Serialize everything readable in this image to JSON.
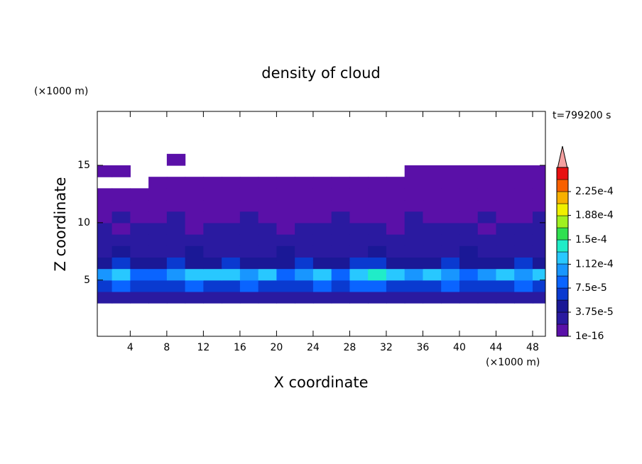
{
  "chart_data": {
    "type": "contour",
    "title": "density of cloud",
    "xlabel": "X coordinate",
    "ylabel": "Z coordinate",
    "xunit": "(×1000 m)",
    "yunit": "(×1000 m)",
    "time_label": "t=799200 s",
    "xlim": [
      0.4,
      49.4
    ],
    "ylim": [
      0.1,
      19.7
    ],
    "xticks": [
      4,
      8,
      12,
      16,
      20,
      24,
      28,
      32,
      36,
      40,
      44,
      48
    ],
    "yticks": [
      5,
      10,
      15
    ],
    "x": [
      1,
      3,
      5,
      7,
      9,
      11,
      13,
      15,
      17,
      19,
      21,
      23,
      25,
      27,
      29,
      31,
      33,
      35,
      37,
      39,
      41,
      43,
      45,
      47,
      49
    ],
    "y": [
      3.5,
      4.5,
      5.5,
      6.5,
      7.5,
      8.5,
      9.5,
      10.5,
      11.5,
      12.5,
      13.5,
      14.5,
      15.5
    ],
    "z": [
      [
        2e-05,
        2e-05,
        2e-05,
        2e-05,
        2e-05,
        2e-05,
        2e-05,
        2e-05,
        2e-05,
        2e-05,
        2e-05,
        2e-05,
        2e-05,
        2e-05,
        2e-05,
        2e-05,
        2e-05,
        2e-05,
        2e-05,
        2e-05,
        2e-05,
        2e-05,
        2e-05,
        2e-05,
        2e-05
      ],
      [
        7e-05,
        8e-05,
        7e-05,
        7e-05,
        7e-05,
        8e-05,
        7e-05,
        7e-05,
        8e-05,
        7e-05,
        7e-05,
        7e-05,
        8e-05,
        7e-05,
        8e-05,
        8e-05,
        7e-05,
        7e-05,
        7e-05,
        8e-05,
        7e-05,
        7e-05,
        7e-05,
        8e-05,
        7e-05
      ],
      [
        0.0001,
        0.000115,
        9e-05,
        8e-05,
        0.0001,
        0.00012,
        0.000115,
        0.000115,
        0.0001,
        0.000115,
        9e-05,
        0.0001,
        0.000115,
        9e-05,
        0.00012,
        0.00014,
        0.00012,
        0.0001,
        0.000115,
        0.0001,
        9e-05,
        0.0001,
        0.000115,
        0.0001,
        0.000115
      ],
      [
        4.5e-05,
        6e-05,
        4.5e-05,
        4.5e-05,
        6e-05,
        4.5e-05,
        4.5e-05,
        6e-05,
        4.5e-05,
        4.5e-05,
        4.5e-05,
        6e-05,
        4.5e-05,
        4.5e-05,
        6e-05,
        6e-05,
        4.5e-05,
        4.5e-05,
        4.5e-05,
        6e-05,
        4.5e-05,
        4.5e-05,
        4.5e-05,
        6e-05,
        4.5e-05
      ],
      [
        3e-05,
        4e-05,
        3e-05,
        3e-05,
        3e-05,
        4e-05,
        3e-05,
        3e-05,
        3e-05,
        3e-05,
        4e-05,
        3e-05,
        3e-05,
        3e-05,
        3e-05,
        4e-05,
        3e-05,
        3e-05,
        3e-05,
        3e-05,
        4e-05,
        3e-05,
        3e-05,
        3e-05,
        3e-05
      ],
      [
        2.5e-05,
        2.5e-05,
        2.5e-05,
        2.5e-05,
        2.5e-05,
        2.5e-05,
        2.5e-05,
        2.5e-05,
        2.5e-05,
        2.5e-05,
        2.5e-05,
        2.5e-05,
        2.5e-05,
        2.5e-05,
        2.5e-05,
        2.5e-05,
        2.5e-05,
        2.5e-05,
        2.5e-05,
        2.5e-05,
        2.5e-05,
        2.5e-05,
        2.5e-05,
        2.5e-05,
        2.5e-05
      ],
      [
        2.2e-05,
        1e-05,
        2.2e-05,
        2.2e-05,
        2.2e-05,
        1e-05,
        2.2e-05,
        2.2e-05,
        2.2e-05,
        2.2e-05,
        1e-05,
        2.2e-05,
        2.2e-05,
        2.2e-05,
        2.2e-05,
        2.2e-05,
        1e-05,
        2.2e-05,
        2.2e-05,
        2.2e-05,
        2.2e-05,
        1e-05,
        2.2e-05,
        2.2e-05,
        2.2e-05
      ],
      [
        5e-06,
        2e-05,
        5e-06,
        5e-06,
        2e-05,
        5e-06,
        5e-06,
        5e-06,
        2e-05,
        5e-06,
        5e-06,
        5e-06,
        5e-06,
        2e-05,
        5e-06,
        5e-06,
        5e-06,
        2e-05,
        5e-06,
        5e-06,
        5e-06,
        2e-05,
        5e-06,
        5e-06,
        2e-05
      ],
      [
        5e-06,
        5e-06,
        5e-06,
        5e-06,
        5e-06,
        5e-06,
        5e-06,
        5e-06,
        5e-06,
        5e-06,
        5e-06,
        5e-06,
        5e-06,
        5e-06,
        5e-06,
        5e-06,
        5e-06,
        5e-06,
        5e-06,
        5e-06,
        5e-06,
        5e-06,
        5e-06,
        5e-06,
        5e-06
      ],
      [
        5e-06,
        5e-06,
        5e-06,
        5e-06,
        5e-06,
        5e-06,
        5e-06,
        5e-06,
        5e-06,
        5e-06,
        5e-06,
        5e-06,
        5e-06,
        5e-06,
        5e-06,
        5e-06,
        5e-06,
        5e-06,
        5e-06,
        5e-06,
        5e-06,
        5e-06,
        5e-06,
        5e-06,
        5e-06
      ],
      [
        null,
        null,
        null,
        5e-06,
        5e-06,
        5e-06,
        5e-06,
        5e-06,
        5e-06,
        5e-06,
        5e-06,
        5e-06,
        5e-06,
        5e-06,
        5e-06,
        5e-06,
        5e-06,
        5e-06,
        5e-06,
        5e-06,
        5e-06,
        5e-06,
        5e-06,
        5e-06,
        5e-06
      ],
      [
        5e-06,
        5e-06,
        null,
        null,
        null,
        null,
        null,
        null,
        null,
        null,
        null,
        null,
        null,
        null,
        null,
        null,
        null,
        5e-06,
        5e-06,
        5e-06,
        5e-06,
        5e-06,
        5e-06,
        5e-06,
        5e-06
      ],
      [
        null,
        null,
        null,
        null,
        5e-06,
        null,
        null,
        null,
        null,
        null,
        null,
        null,
        null,
        null,
        null,
        null,
        null,
        null,
        null,
        null,
        null,
        null,
        null,
        null,
        null
      ]
    ],
    "colorbar": {
      "levels": [
        1e-16,
        1.875e-05,
        3.75e-05,
        5.625e-05,
        7.5e-05,
        9.375e-05,
        0.0001125,
        0.00013125,
        0.00015,
        0.00016875,
        0.0001875,
        0.00020625,
        0.000225,
        0.00024375,
        0.0002625
      ],
      "colors": [
        "#5a10a8",
        "#2a1aa0",
        "#1a1896",
        "#0a3ad0",
        "#0a64ff",
        "#1896ff",
        "#28c8ff",
        "#20ecc8",
        "#30e050",
        "#a0f020",
        "#f0f000",
        "#f8b000",
        "#f86000",
        "#e81010"
      ],
      "ticks": [
        1e-16,
        {
          "value": 3.75e-05,
          "label": "3.75e-5"
        },
        {
          "value": 7.5e-05,
          "label": "7.5e-5"
        },
        {
          "value": 0.000112,
          "label": "1.12e-4"
        },
        {
          "value": 0.00015,
          "label": "1.5e-4"
        },
        {
          "value": 0.000188,
          "label": "1.88e-4"
        },
        {
          "value": 0.000225,
          "label": "2.25e-4"
        }
      ]
    }
  }
}
